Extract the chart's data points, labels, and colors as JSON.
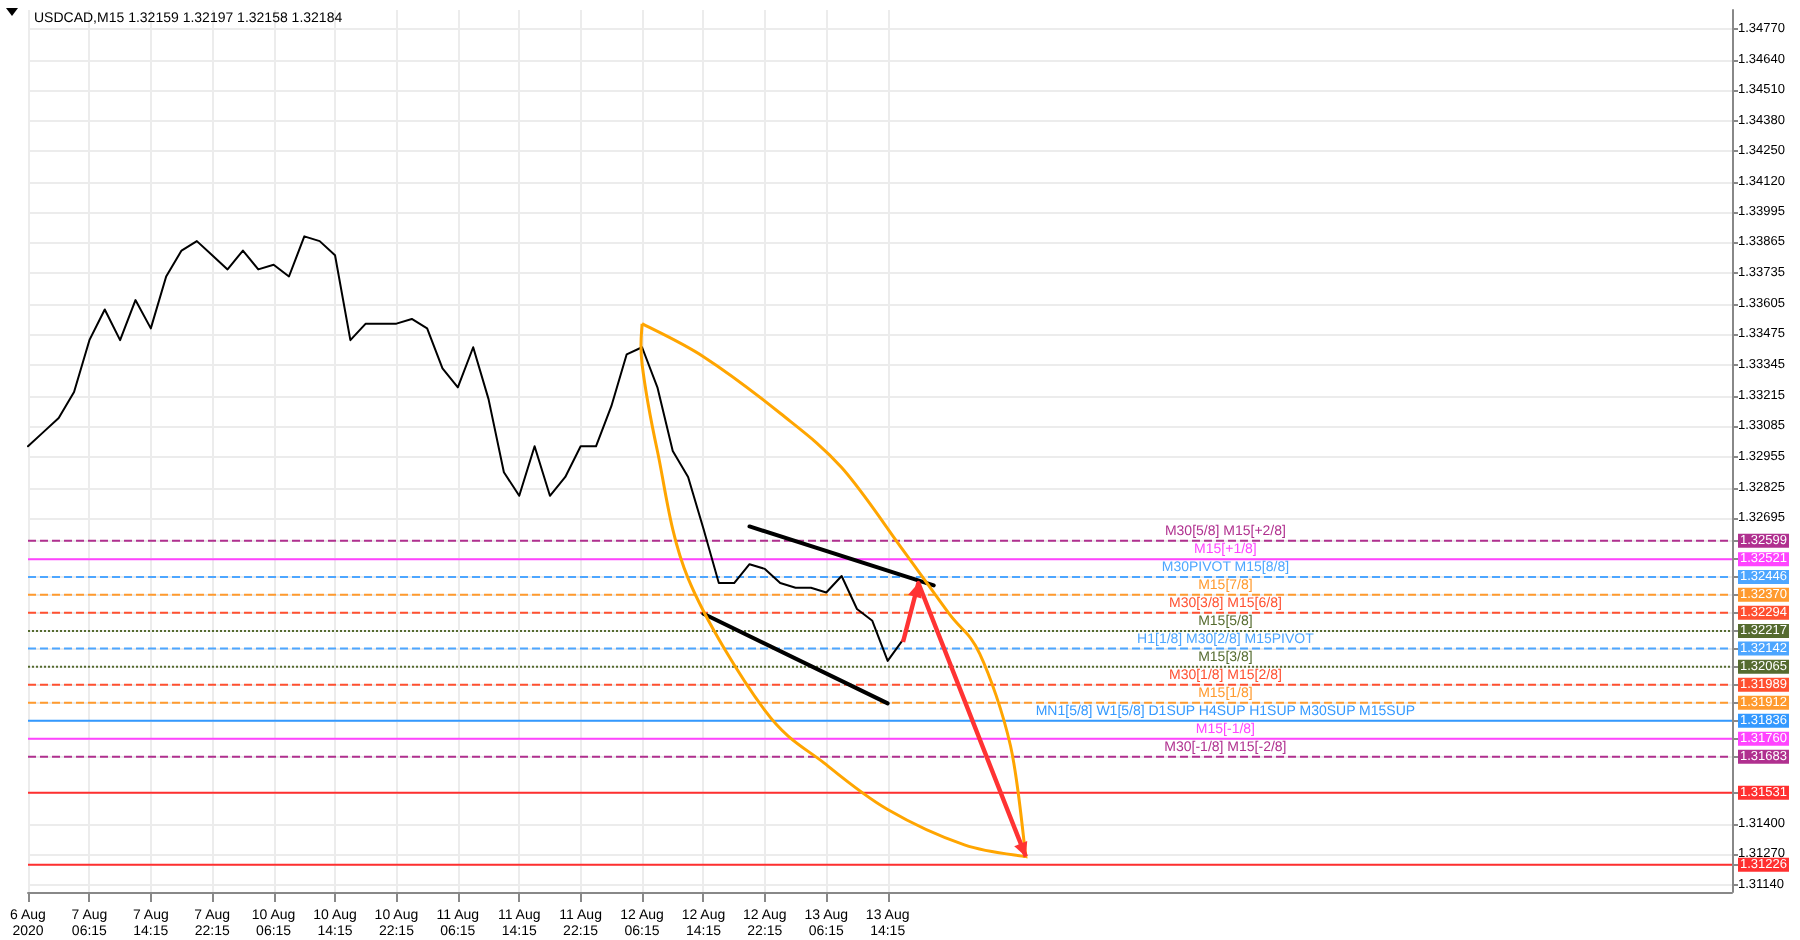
{
  "chart_data": {
    "type": "line",
    "title": "USDCAD,M15 1.32159 1.32197 1.32158 1.32184",
    "categories": [
      "6 Aug 2020",
      null,
      null,
      null,
      "7 Aug 06:15",
      null,
      null,
      null,
      "7 Aug 14:15",
      null,
      null,
      null,
      "7 Aug 22:15",
      null,
      null,
      null,
      "10 Aug 06:15",
      null,
      null,
      null,
      "10 Aug 14:15",
      null,
      null,
      null,
      "10 Aug 22:15",
      null,
      null,
      null,
      "11 Aug 06:15",
      null,
      null,
      null,
      "11 Aug 14:15",
      null,
      null,
      null,
      "11 Aug 22:15",
      null,
      null,
      null,
      "12 Aug 06:15",
      null,
      null,
      null,
      "12 Aug 14:15",
      null,
      null,
      null,
      "12 Aug 22:15",
      null,
      null,
      null,
      "13 Aug 06:15",
      null,
      null,
      null,
      "13 Aug 14:15",
      null,
      null,
      null,
      null,
      null,
      null,
      null,
      null,
      null,
      null,
      null,
      null,
      null,
      null,
      null,
      null,
      null,
      null,
      null,
      null,
      null,
      null,
      null,
      null,
      null,
      null,
      null,
      null,
      null,
      null,
      null,
      null,
      null,
      null,
      null,
      null,
      null,
      null,
      null,
      null,
      null,
      null,
      null,
      null,
      null,
      null,
      null,
      null,
      null,
      null,
      null,
      null,
      null,
      null,
      null
    ],
    "series": [
      {
        "color": "#000000",
        "values": [
          1.33,
          1.3306,
          1.3312,
          1.3323,
          1.3345,
          1.3358,
          1.3345,
          1.3362,
          1.335,
          1.3372,
          1.3383,
          1.3387,
          1.3381,
          1.3375,
          1.3383,
          1.3375,
          1.3377,
          1.3372,
          1.3389,
          1.3387,
          1.3381,
          1.3345,
          1.3352,
          1.3352,
          1.3352,
          1.3354,
          1.335,
          1.3333,
          1.3325,
          1.3342,
          1.332,
          1.3289,
          1.3279,
          1.33,
          1.3279,
          1.3287,
          1.33,
          1.33,
          1.3317,
          1.3339,
          1.3342,
          1.3325,
          1.3298,
          1.3287,
          1.3265,
          1.3242,
          1.3242,
          1.325,
          1.3248,
          1.3242,
          1.324,
          1.324,
          1.3238,
          1.3245,
          1.3231,
          1.3226,
          1.3209,
          1.3218,
          null,
          null,
          null,
          null,
          null,
          null,
          null,
          null,
          null,
          null,
          null,
          null,
          null,
          null,
          null,
          null,
          null,
          null,
          null,
          null,
          null,
          null,
          null,
          null,
          null,
          null,
          null,
          null,
          null,
          null,
          null,
          null,
          null,
          null,
          null,
          null,
          null,
          null,
          null,
          null,
          null,
          null,
          null,
          null,
          null,
          null,
          null,
          null,
          null,
          null,
          null,
          null,
          null,
          null
        ]
      },
      {
        "color": "#000000",
        "values": [
          null,
          null,
          null,
          null,
          null,
          null,
          null,
          null,
          null,
          null,
          null,
          null,
          null,
          null,
          null,
          null,
          null,
          null,
          null,
          null,
          null,
          null,
          null,
          null,
          null,
          null,
          null,
          null,
          null,
          null,
          null,
          null,
          null,
          null,
          null,
          null,
          null,
          null,
          null,
          null,
          null,
          null,
          null,
          null,
          null,
          null,
          null,
          1.3266,
          null,
          null,
          null,
          null,
          null,
          null,
          null,
          null,
          null,
          null,
          null,
          1.3241,
          null,
          null,
          null,
          null,
          null,
          null,
          null,
          null,
          null,
          null,
          null,
          null,
          null,
          null,
          null,
          null,
          null,
          null,
          null,
          null,
          null,
          null,
          null,
          null,
          null,
          null,
          null,
          null,
          null,
          null,
          null,
          null,
          null,
          null,
          null,
          null,
          null,
          null,
          null,
          null,
          null,
          null,
          null,
          null,
          null,
          null,
          null,
          null,
          null,
          null,
          null,
          null
        ]
      },
      {
        "color": "#000000",
        "values": [
          null,
          null,
          null,
          null,
          null,
          null,
          null,
          null,
          null,
          null,
          null,
          null,
          null,
          null,
          null,
          null,
          null,
          null,
          null,
          null,
          null,
          null,
          null,
          null,
          null,
          null,
          null,
          null,
          null,
          null,
          null,
          null,
          null,
          null,
          null,
          null,
          null,
          null,
          null,
          null,
          null,
          null,
          null,
          null,
          1.3229,
          null,
          null,
          null,
          null,
          null,
          null,
          null,
          null,
          null,
          null,
          null,
          1.3191,
          null,
          null,
          null,
          null,
          null,
          null,
          null,
          null,
          null,
          null,
          null,
          null,
          null,
          null,
          null,
          null,
          null,
          null,
          null,
          null,
          null,
          null,
          null,
          null,
          null,
          null,
          null,
          null,
          null,
          null,
          null,
          null,
          null,
          null,
          null,
          null,
          null,
          null,
          null,
          null,
          null,
          null,
          null,
          null,
          null,
          null,
          null,
          null,
          null,
          null,
          null,
          null,
          null,
          null,
          null
        ]
      }
    ],
    "ylim": [
      1.3111,
      1.3485
    ],
    "yticks": [
      {
        "value": 1.3477,
        "label": "1.34770"
      },
      {
        "value": 1.3464,
        "label": "1.34640"
      },
      {
        "value": 1.3451,
        "label": "1.34510"
      },
      {
        "value": 1.3438,
        "label": "1.34380"
      },
      {
        "value": 1.3425,
        "label": "1.34250"
      },
      {
        "value": 1.3412,
        "label": "1.34120"
      },
      {
        "value": 1.33995,
        "label": "1.33995"
      },
      {
        "value": 1.33865,
        "label": "1.33865"
      },
      {
        "value": 1.33735,
        "label": "1.33735"
      },
      {
        "value": 1.33605,
        "label": "1.33605"
      },
      {
        "value": 1.33475,
        "label": "1.33475"
      },
      {
        "value": 1.33345,
        "label": "1.33345"
      },
      {
        "value": 1.33215,
        "label": "1.33215"
      },
      {
        "value": 1.33085,
        "label": "1.33085"
      },
      {
        "value": 1.32955,
        "label": "1.32955"
      },
      {
        "value": 1.32825,
        "label": "1.32825"
      },
      {
        "value": 1.32695,
        "label": "1.32695"
      },
      {
        "value": 1.32599,
        "label": "1.32599"
      },
      {
        "value": 1.32521,
        "label": "1.32521"
      },
      {
        "value": 1.32446,
        "label": "1.32446"
      },
      {
        "value": 1.3237,
        "label": "1.32370"
      },
      {
        "value": 1.32294,
        "label": "1.32294"
      },
      {
        "value": 1.32217,
        "label": "1.32217"
      },
      {
        "value": 1.32142,
        "label": "1.32142"
      },
      {
        "value": 1.32065,
        "label": "1.32065"
      },
      {
        "value": 1.31989,
        "label": "1.31989"
      },
      {
        "value": 1.31912,
        "label": "1.31912"
      },
      {
        "value": 1.31836,
        "label": "1.31836"
      },
      {
        "value": 1.3176,
        "label": "1.31760"
      },
      {
        "value": 1.31683,
        "label": "1.31683"
      },
      {
        "value": 1.31531,
        "label": "1.31531"
      },
      {
        "value": 1.314,
        "label": "1.31400"
      },
      {
        "value": 1.3127,
        "label": "1.31270"
      },
      {
        "value": 1.31226,
        "label": "1.31226"
      },
      {
        "value": 1.3114,
        "label": "1.31140"
      }
    ],
    "grid": true,
    "ref_lines": [
      {
        "axis": "y",
        "value": 1.32599,
        "label": "M30[5/8] M15[+2/8]",
        "color": "#b0308f",
        "line_style": "dashed"
      },
      {
        "axis": "y",
        "value": 1.32521,
        "label": "M15[+1/8]",
        "color": "#ff44ff",
        "line_style": "solid"
      },
      {
        "axis": "y",
        "value": 1.32446,
        "label": "M30PIVOT M15[8/8]",
        "color": "#4da6ff",
        "line_style": "dashed"
      },
      {
        "axis": "y",
        "value": 1.3237,
        "label": "M15[7/8]",
        "color": "#ff9a2e",
        "line_style": "dashed"
      },
      {
        "axis": "y",
        "value": 1.32294,
        "label": "M30[3/8] M15[6/8]",
        "color": "#ff5030",
        "line_style": "dashed"
      },
      {
        "axis": "y",
        "value": 1.32217,
        "label": "M15[5/8]",
        "color": "#556b2f",
        "line_style": "dotted"
      },
      {
        "axis": "y",
        "value": 1.32142,
        "label": "H1[1/8] M30[2/8] M15PIVOT",
        "color": "#4da6ff",
        "line_style": "dashed"
      },
      {
        "axis": "y",
        "value": 1.32065,
        "label": "M15[3/8]",
        "color": "#556b2f",
        "line_style": "dotted"
      },
      {
        "axis": "y",
        "value": 1.31989,
        "label": "M30[1/8] M15[2/8]",
        "color": "#ff5030",
        "line_style": "dashed"
      },
      {
        "axis": "y",
        "value": 1.31912,
        "label": "M15[1/8]",
        "color": "#ff9a2e",
        "line_style": "dashed"
      },
      {
        "axis": "y",
        "value": 1.31836,
        "label": "MN1[5/8] W1[5/8] D1SUP H4SUP H1SUP M30SUP M15SUP",
        "color": "#3399ff",
        "line_style": "solid"
      },
      {
        "axis": "y",
        "value": 1.3176,
        "label": "M15[-1/8]",
        "color": "#ff44ff",
        "line_style": "solid"
      },
      {
        "axis": "y",
        "value": 1.31683,
        "label": "M30[-1/8] M15[-2/8]",
        "color": "#b0308f",
        "line_style": "dashed"
      },
      {
        "axis": "y",
        "value": 1.31531,
        "color": "#ff3030",
        "line_style": "solid"
      },
      {
        "axis": "y",
        "value": 1.31226,
        "color": "#ff3030",
        "line_style": "solid"
      }
    ]
  }
}
